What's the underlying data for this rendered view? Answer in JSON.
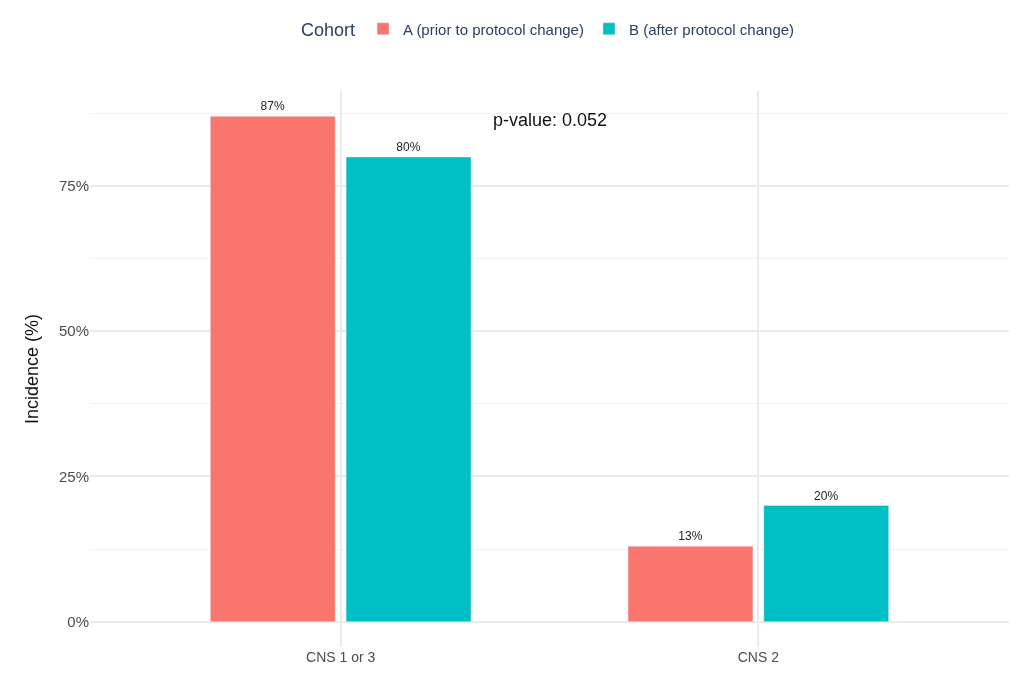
{
  "chart_data": {
    "type": "bar",
    "ylabel": "Incidence (%)",
    "legend_title": "Cohort",
    "categories": [
      "CNS 1 or 3",
      "CNS 2"
    ],
    "series": [
      {
        "name": "A (prior to protocol change)",
        "color": "#f8766d",
        "values": [
          87,
          13
        ]
      },
      {
        "name": "B (after protocol change)",
        "color": "#00bfc4",
        "values": [
          80,
          20
        ]
      }
    ],
    "ylim": [
      -4.35,
      91.35
    ],
    "yticks": [
      {
        "value": 0,
        "label": "0%"
      },
      {
        "value": 25,
        "label": "25%"
      },
      {
        "value": 50,
        "label": "50%"
      },
      {
        "value": 75,
        "label": "75%"
      }
    ],
    "value_labels": [
      [
        "87%",
        "13%"
      ],
      [
        "80%",
        "20%"
      ]
    ],
    "annotations": [
      "p-value: 0.052"
    ],
    "grid": true,
    "legend": "top"
  }
}
